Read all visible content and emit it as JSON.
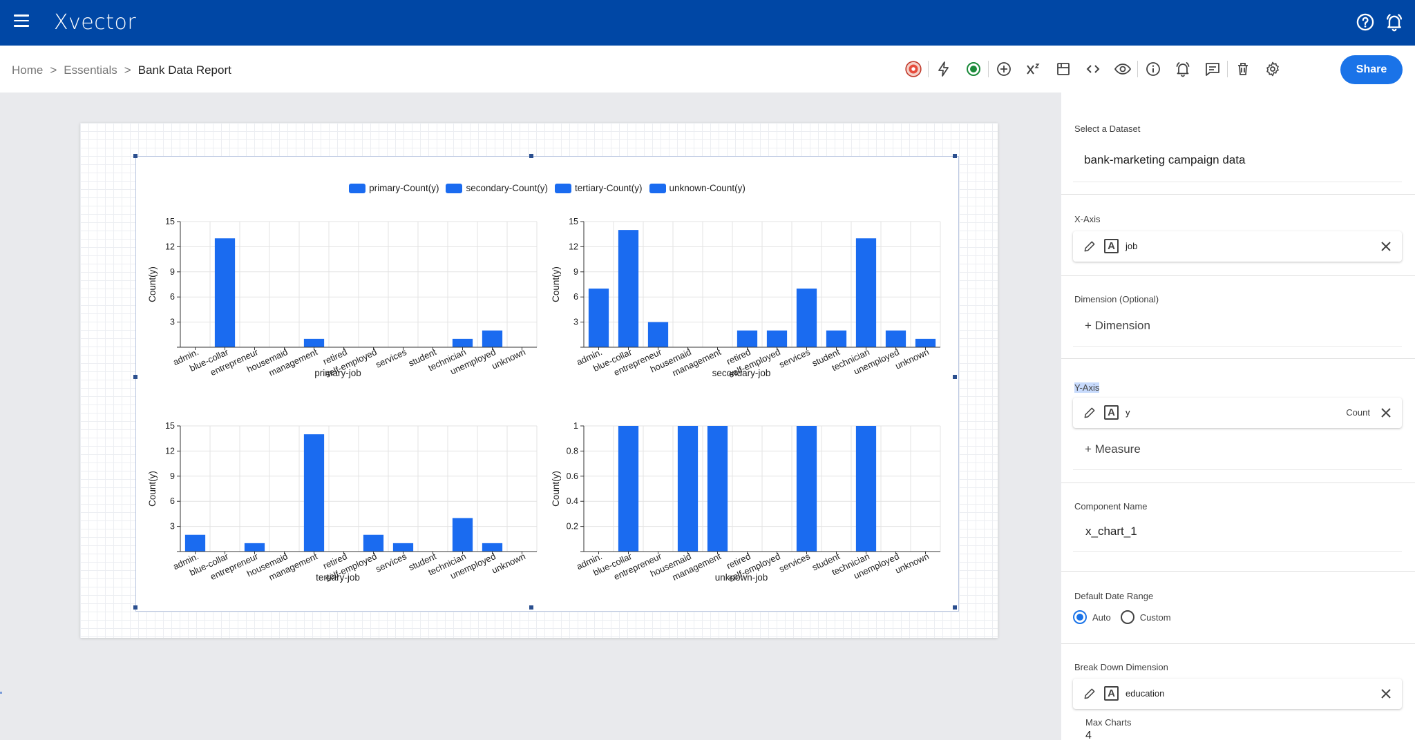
{
  "app": {
    "brand": "Xvector"
  },
  "breadcrumb": {
    "home": "Home",
    "sep": ">",
    "essentials": "Essentials",
    "current": "Bank Data Report"
  },
  "toolbar": {
    "share_label": "Share"
  },
  "colors": {
    "header": "#0047a5",
    "accent": "#1a73e8",
    "bar": "#1a6bf0"
  },
  "legend": [
    "primary-Count(y)",
    "secondary-Count(y)",
    "tertiary-Count(y)",
    "unknown-Count(y)"
  ],
  "chart_data": [
    {
      "type": "bar",
      "xlabel": "primary-job",
      "ylabel": "Count(y)",
      "ylim": [
        0,
        15
      ],
      "yticks": [
        "15",
        "12",
        "9",
        "6",
        "3"
      ],
      "categories": [
        "admin.",
        "blue-collar",
        "entrepreneur",
        "housemaid",
        "management",
        "retired",
        "self-employed",
        "services",
        "student",
        "technician",
        "unemployed",
        "unknown"
      ],
      "values": [
        0,
        13,
        0,
        0,
        1,
        0,
        0,
        0,
        0,
        1,
        2,
        0
      ]
    },
    {
      "type": "bar",
      "xlabel": "secondary-job",
      "ylabel": "Count(y)",
      "ylim": [
        0,
        15
      ],
      "yticks": [
        "15",
        "12",
        "9",
        "6",
        "3"
      ],
      "categories": [
        "admin.",
        "blue-collar",
        "entrepreneur",
        "housemaid",
        "management",
        "retired",
        "self-employed",
        "services",
        "student",
        "technician",
        "unemployed",
        "unknown"
      ],
      "values": [
        7,
        14,
        3,
        0,
        0,
        2,
        2,
        7,
        2,
        13,
        2,
        1
      ]
    },
    {
      "type": "bar",
      "xlabel": "tertiary-job",
      "ylabel": "Count(y)",
      "ylim": [
        0,
        15
      ],
      "yticks": [
        "15",
        "12",
        "9",
        "6",
        "3"
      ],
      "categories": [
        "admin.",
        "blue-collar",
        "entrepreneur",
        "housemaid",
        "management",
        "retired",
        "self-employed",
        "services",
        "student",
        "technician",
        "unemployed",
        "unknown"
      ],
      "values": [
        2,
        0,
        1,
        0,
        14,
        0,
        2,
        1,
        0,
        4,
        1,
        0
      ]
    },
    {
      "type": "bar",
      "xlabel": "unknown-job",
      "ylabel": "Count(y)",
      "ylim": [
        0,
        1
      ],
      "yticks": [
        "1",
        "0.8",
        "0.6",
        "0.4",
        "0.2"
      ],
      "categories": [
        "admin.",
        "blue-collar",
        "entrepreneur",
        "housemaid",
        "management",
        "retired",
        "self-employed",
        "services",
        "student",
        "technician",
        "unemployed",
        "unknown"
      ],
      "values": [
        0,
        1,
        0,
        1,
        1,
        0,
        0,
        1,
        0,
        1,
        0,
        0
      ]
    }
  ],
  "panel": {
    "dataset": {
      "label": "Select a Dataset",
      "value": "bank-marketing campaign data"
    },
    "xaxis": {
      "label": "X-Axis",
      "field": "job"
    },
    "dimension": {
      "label": "Dimension (Optional)",
      "add": "+ Dimension"
    },
    "yaxis": {
      "label": "Y-Axis",
      "field": "y",
      "agg": "Count",
      "add": "+ Measure"
    },
    "component": {
      "label": "Component Name",
      "value": "x_chart_1"
    },
    "daterange": {
      "label": "Default Date Range",
      "auto": "Auto",
      "custom": "Custom"
    },
    "breakdown": {
      "label": "Break Down Dimension",
      "field": "education"
    },
    "maxcharts": {
      "label": "Max Charts",
      "value": "4"
    }
  }
}
